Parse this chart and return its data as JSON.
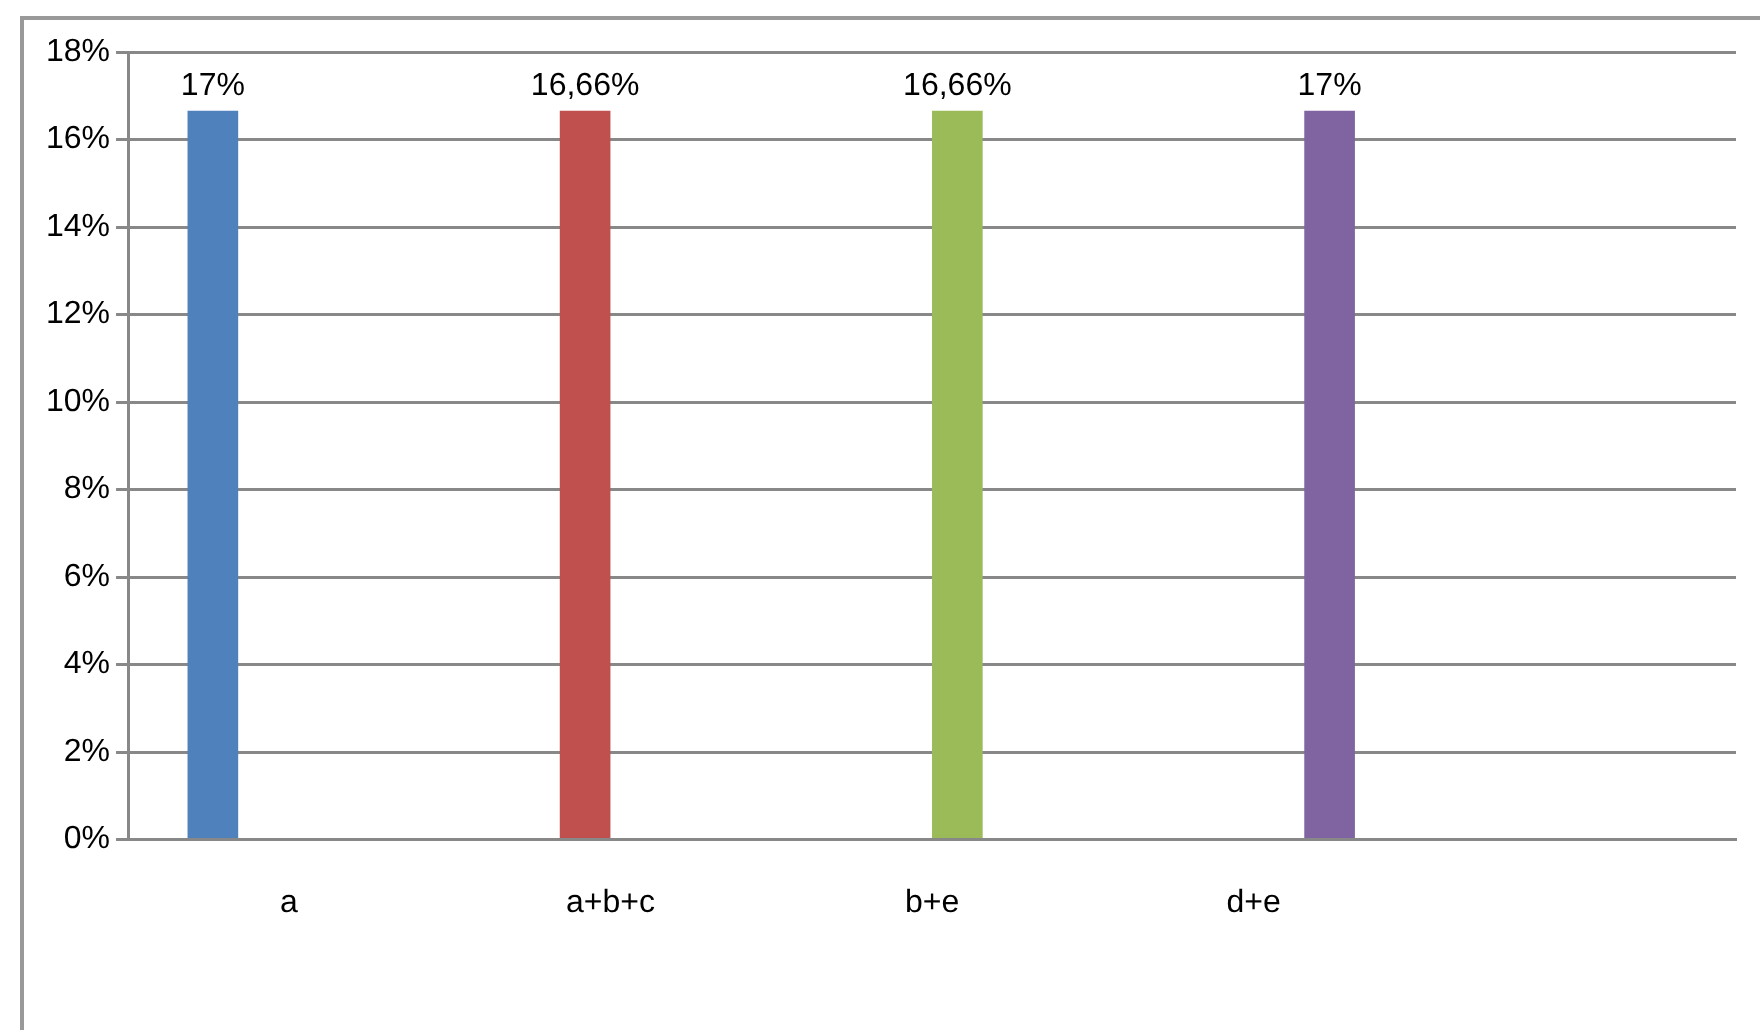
{
  "chart_data": {
    "type": "bar",
    "categories": [
      "a",
      "a+b+c",
      "b+e",
      "d+e",
      null
    ],
    "series": [
      {
        "color": "#4f81bd",
        "values": [
          16.66,
          null,
          null,
          null,
          null
        ],
        "value_labels": [
          "17%",
          null,
          null,
          null,
          null
        ]
      },
      {
        "color": "#c0504d",
        "values": [
          null,
          16.66,
          null,
          null,
          null
        ],
        "value_labels": [
          null,
          "16,66%",
          null,
          null,
          null
        ]
      },
      {
        "color": "#9bbb59",
        "values": [
          null,
          null,
          16.66,
          null,
          null
        ],
        "value_labels": [
          null,
          null,
          "16,66%",
          null,
          null
        ]
      },
      {
        "color": "#8064a2",
        "values": [
          null,
          null,
          null,
          16.66,
          null
        ],
        "value_labels": [
          null,
          null,
          null,
          "17%",
          null
        ]
      }
    ],
    "ylim": [
      0,
      18
    ],
    "yticks": [
      {
        "value": 0,
        "label": "0%"
      },
      {
        "value": 2,
        "label": "2%"
      },
      {
        "value": 4,
        "label": "4%"
      },
      {
        "value": 6,
        "label": "6%"
      },
      {
        "value": 8,
        "label": "8%"
      },
      {
        "value": 10,
        "label": "10%"
      },
      {
        "value": 12,
        "label": "12%"
      },
      {
        "value": 14,
        "label": "14%"
      },
      {
        "value": 16,
        "label": "16%"
      },
      {
        "value": 18,
        "label": "18%"
      }
    ],
    "grid": "y",
    "legend": false
  }
}
